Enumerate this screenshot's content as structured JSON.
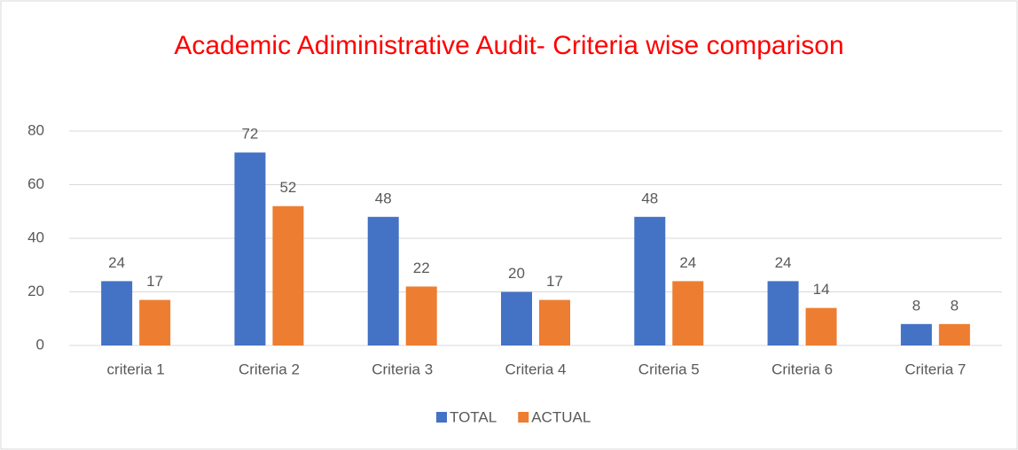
{
  "chart_data": {
    "type": "bar",
    "title": "Academic Adiministrative Audit- Criteria wise comparison",
    "categories": [
      "criteria 1",
      "Criteria 2",
      "Criteria 3",
      "Criteria 4",
      "Criteria 5",
      "Criteria 6",
      "Criteria 7"
    ],
    "series": [
      {
        "name": "TOTAL",
        "color": "#4472c4",
        "values": [
          24,
          72,
          48,
          20,
          48,
          24,
          8
        ]
      },
      {
        "name": "ACTUAL",
        "color": "#ed7d31",
        "values": [
          17,
          52,
          22,
          17,
          24,
          14,
          8
        ]
      }
    ],
    "ylim": [
      0,
      80
    ],
    "yticks": [
      0,
      20,
      40,
      60,
      80
    ],
    "grid": true,
    "legend": "bottom"
  }
}
